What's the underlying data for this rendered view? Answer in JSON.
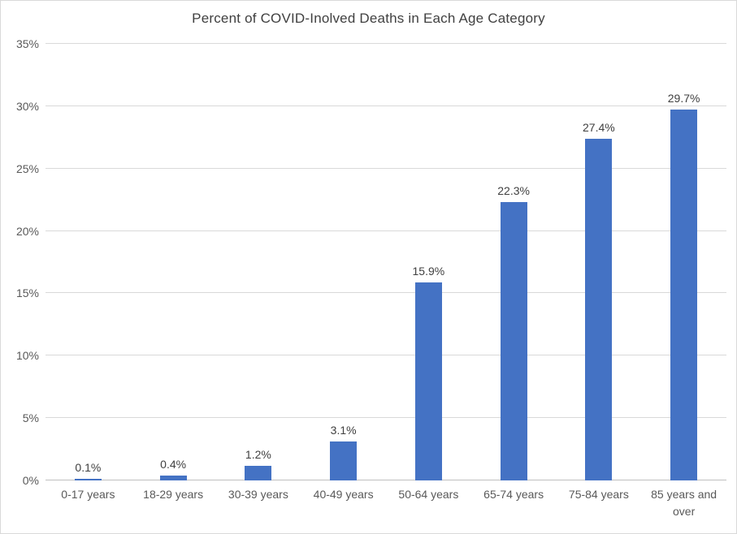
{
  "chart_data": {
    "type": "bar",
    "title": "Percent of COVID-Inolved Deaths in Each Age Category",
    "categories": [
      "0-17 years",
      "18-29 years",
      "30-39 years",
      "40-49 years",
      "50-64 years",
      "65-74 years",
      "75-84 years",
      "85 years and over"
    ],
    "values": [
      0.1,
      0.4,
      1.2,
      3.1,
      15.9,
      22.3,
      27.4,
      29.7
    ],
    "data_labels": [
      "0.1%",
      "0.4%",
      "1.2%",
      "3.1%",
      "15.9%",
      "22.3%",
      "27.4%",
      "29.7%"
    ],
    "xlabel": "",
    "ylabel": "",
    "ylim": [
      0,
      35
    ],
    "yticks": [
      0,
      5,
      10,
      15,
      20,
      25,
      30,
      35
    ],
    "ytick_labels": [
      "0%",
      "5%",
      "10%",
      "15%",
      "20%",
      "25%",
      "30%",
      "35%"
    ],
    "grid": true,
    "legend": false,
    "bar_color": "#4472C4",
    "gridline_color": "#D9D9D9",
    "axis_line_color": "#BFBFBF",
    "axis_text_color": "#595959",
    "data_label_color": "#404040"
  }
}
